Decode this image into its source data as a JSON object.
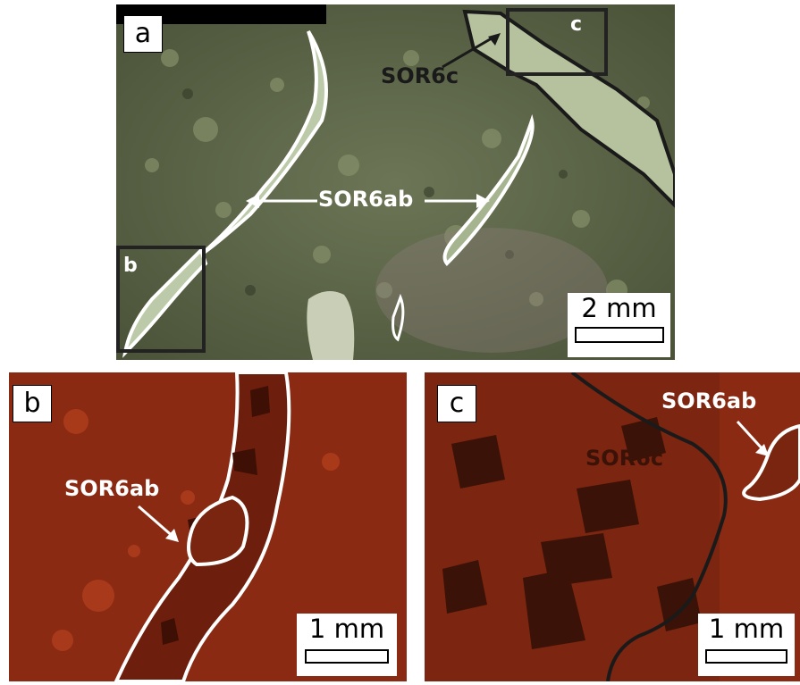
{
  "figure": {
    "panel_a": {
      "letter": "a",
      "inset_b_letter": "b",
      "inset_c_letter": "c",
      "label_sor6c": "SOR6c",
      "label_sor6ab": "SOR6ab",
      "scale_text": "2 mm"
    },
    "panel_b": {
      "letter": "b",
      "label_sor6ab": "SOR6ab",
      "scale_text": "1 mm"
    },
    "panel_c": {
      "letter": "c",
      "label_sor6c": "SOR6c",
      "label_sor6ab": "SOR6ab",
      "scale_text": "1 mm"
    }
  },
  "colors": {
    "thin_section_bg": "#5f6a4a",
    "vein_fill": "#b9c7a8",
    "cl_bg": "#8a2a12",
    "outline_white": "#ffffff",
    "outline_dark": "#1a1a1a"
  }
}
